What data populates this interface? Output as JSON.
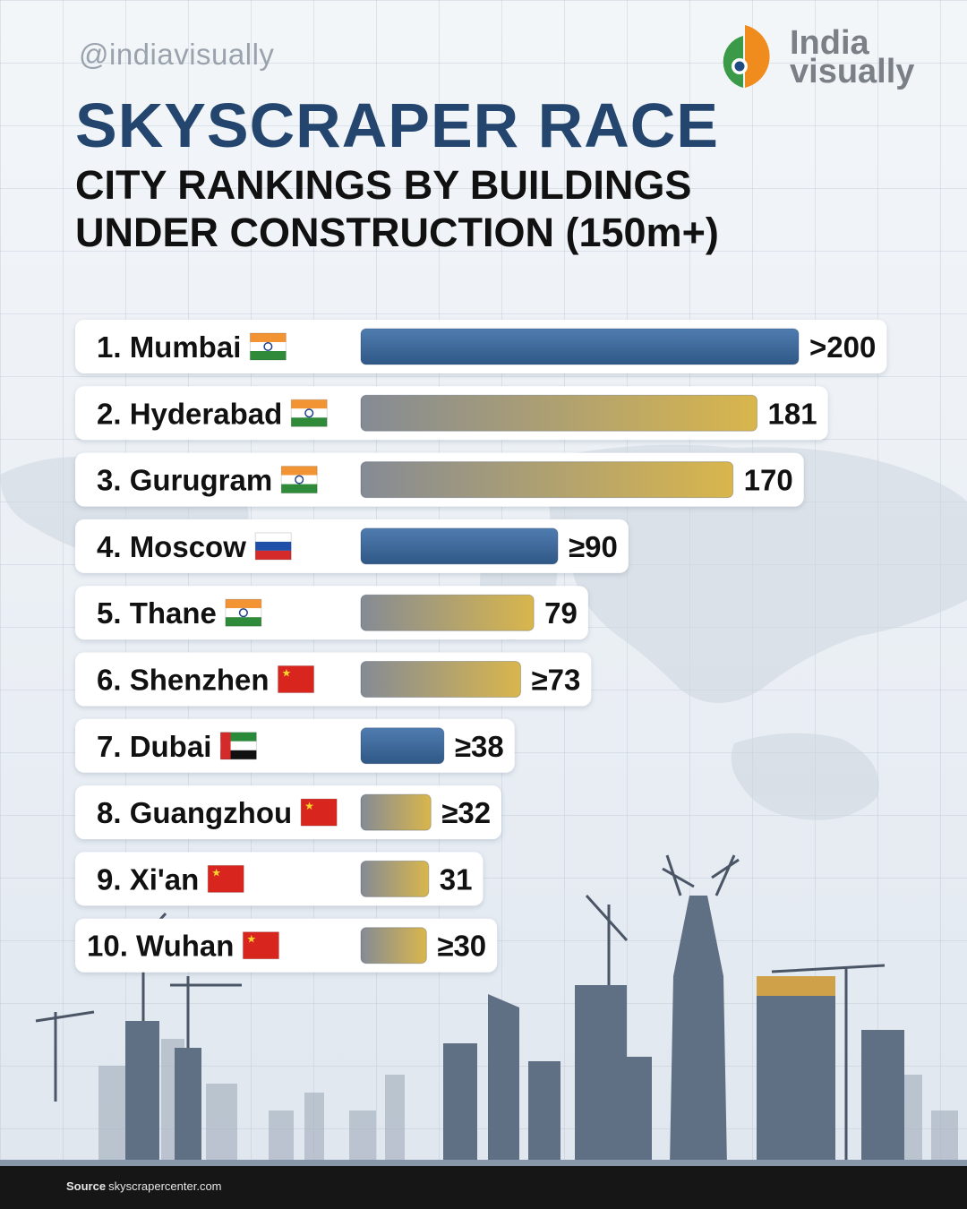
{
  "header": {
    "handle": "@indiavisually",
    "logo_line1": "India",
    "logo_line2": "visually",
    "title": "SKYSCRAPER RACE",
    "subtitle_line1": "CITY RANKINGS BY BUILDINGS",
    "subtitle_line2": "UNDER CONSTRUCTION (150m+)"
  },
  "colors": {
    "title": "#24466e",
    "blue_bar": "#3f6a9a",
    "gold_bar_start": "#8a8f98",
    "gold_bar_end": "#d6b64f"
  },
  "chart_data": {
    "type": "bar",
    "orientation": "horizontal",
    "title": "SKYSCRAPER RACE",
    "subtitle": "CITY RANKINGS BY BUILDINGS UNDER CONSTRUCTION (150m+)",
    "categories": [
      "Mumbai",
      "Hyderabad",
      "Gurugram",
      "Moscow",
      "Thane",
      "Shenzhen",
      "Dubai",
      "Guangzhou",
      "Xi'an",
      "Wuhan"
    ],
    "ranks": [
      "1.",
      "2.",
      "3.",
      "4.",
      "5.",
      "6.",
      "7.",
      "8.",
      "9.",
      "10."
    ],
    "flags": [
      "india-flag-icon",
      "india-flag-icon",
      "india-flag-icon",
      "russia-flag-icon",
      "india-flag-icon",
      "china-flag-icon",
      "uae-flag-icon",
      "china-flag-icon",
      "china-flag-icon",
      "china-flag-icon"
    ],
    "values": [
      200,
      181,
      170,
      90,
      79,
      73,
      38,
      32,
      31,
      30
    ],
    "value_labels": [
      ">200",
      "181",
      "170",
      "≥90",
      "79",
      "≥73",
      "≥38",
      "≥32",
      "31",
      "≥30"
    ],
    "bar_styles": [
      "blue",
      "gold",
      "gold",
      "blue",
      "gold",
      "gold",
      "blue",
      "gold",
      "gold",
      "gold"
    ],
    "xlim": [
      0,
      200
    ],
    "grid": false,
    "legend": "none"
  },
  "footer": {
    "source_label": "Source",
    "source_value": "skyscrapercenter.com"
  }
}
